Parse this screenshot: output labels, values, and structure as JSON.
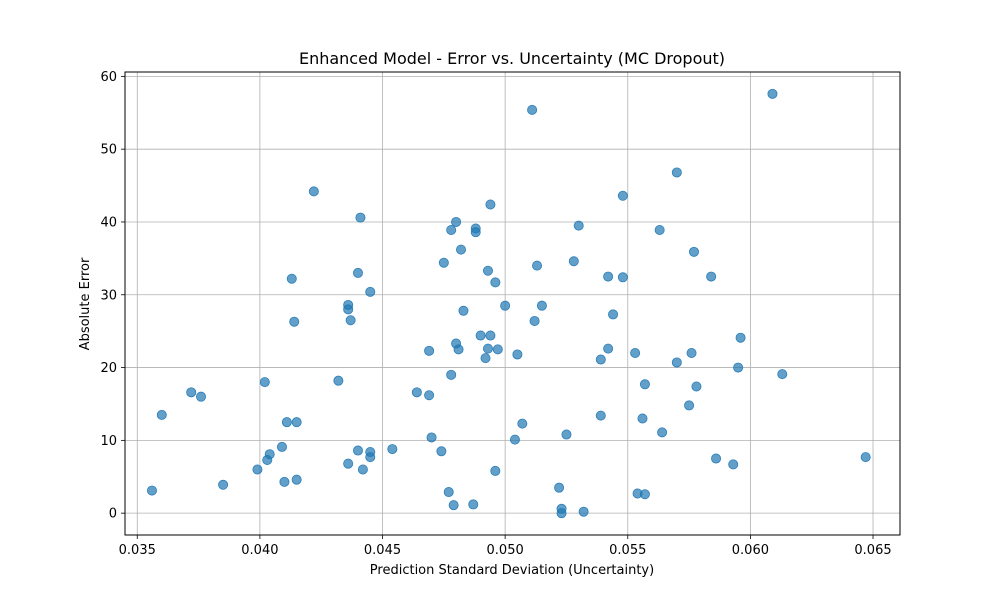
{
  "chart_data": {
    "type": "scatter",
    "title": "Enhanced Model - Error vs. Uncertainty (MC Dropout)",
    "xlabel": "Prediction Standard Deviation (Uncertainty)",
    "ylabel": "Absolute Error",
    "xlim": [
      0.0345,
      0.0661
    ],
    "ylim": [
      -3.0,
      60.6
    ],
    "xticks": [
      0.035,
      0.04,
      0.045,
      0.05,
      0.055,
      0.06,
      0.065
    ],
    "xtick_labels": [
      "0.035",
      "0.040",
      "0.045",
      "0.050",
      "0.055",
      "0.060",
      "0.065"
    ],
    "yticks": [
      0,
      10,
      20,
      30,
      40,
      50,
      60
    ],
    "ytick_labels": [
      "0",
      "10",
      "20",
      "30",
      "40",
      "50",
      "60"
    ],
    "grid": true,
    "marker_color": "#1f77b4",
    "marker_alpha": 0.7,
    "points": [
      {
        "x": 0.0356,
        "y": 3.1
      },
      {
        "x": 0.036,
        "y": 13.5
      },
      {
        "x": 0.0372,
        "y": 16.6
      },
      {
        "x": 0.0376,
        "y": 16.0
      },
      {
        "x": 0.0385,
        "y": 3.9
      },
      {
        "x": 0.0399,
        "y": 6.0
      },
      {
        "x": 0.0402,
        "y": 18.0
      },
      {
        "x": 0.0403,
        "y": 7.3
      },
      {
        "x": 0.0404,
        "y": 8.1
      },
      {
        "x": 0.0409,
        "y": 9.1
      },
      {
        "x": 0.041,
        "y": 4.3
      },
      {
        "x": 0.0411,
        "y": 12.5
      },
      {
        "x": 0.0413,
        "y": 32.2
      },
      {
        "x": 0.0414,
        "y": 26.3
      },
      {
        "x": 0.0415,
        "y": 12.5
      },
      {
        "x": 0.0415,
        "y": 4.6
      },
      {
        "x": 0.0422,
        "y": 44.2
      },
      {
        "x": 0.0432,
        "y": 18.2
      },
      {
        "x": 0.0436,
        "y": 28.6
      },
      {
        "x": 0.0436,
        "y": 28.0
      },
      {
        "x": 0.0436,
        "y": 6.8
      },
      {
        "x": 0.0437,
        "y": 26.5
      },
      {
        "x": 0.044,
        "y": 33.0
      },
      {
        "x": 0.044,
        "y": 8.6
      },
      {
        "x": 0.0441,
        "y": 40.6
      },
      {
        "x": 0.0442,
        "y": 6.0
      },
      {
        "x": 0.0445,
        "y": 30.4
      },
      {
        "x": 0.0445,
        "y": 8.4
      },
      {
        "x": 0.0445,
        "y": 7.7
      },
      {
        "x": 0.0454,
        "y": 8.8
      },
      {
        "x": 0.0464,
        "y": 16.6
      },
      {
        "x": 0.0469,
        "y": 16.2
      },
      {
        "x": 0.0469,
        "y": 22.3
      },
      {
        "x": 0.047,
        "y": 10.4
      },
      {
        "x": 0.0474,
        "y": 8.5
      },
      {
        "x": 0.0475,
        "y": 34.4
      },
      {
        "x": 0.0477,
        "y": 2.9
      },
      {
        "x": 0.0478,
        "y": 38.9
      },
      {
        "x": 0.0478,
        "y": 19.0
      },
      {
        "x": 0.0479,
        "y": 1.1
      },
      {
        "x": 0.048,
        "y": 40.0
      },
      {
        "x": 0.048,
        "y": 23.3
      },
      {
        "x": 0.0481,
        "y": 22.5
      },
      {
        "x": 0.0482,
        "y": 36.2
      },
      {
        "x": 0.0483,
        "y": 27.8
      },
      {
        "x": 0.0487,
        "y": 1.2
      },
      {
        "x": 0.0488,
        "y": 39.1
      },
      {
        "x": 0.0488,
        "y": 38.6
      },
      {
        "x": 0.049,
        "y": 24.4
      },
      {
        "x": 0.0492,
        "y": 21.3
      },
      {
        "x": 0.0493,
        "y": 33.3
      },
      {
        "x": 0.0493,
        "y": 22.6
      },
      {
        "x": 0.0494,
        "y": 42.4
      },
      {
        "x": 0.0494,
        "y": 24.4
      },
      {
        "x": 0.0496,
        "y": 31.7
      },
      {
        "x": 0.0496,
        "y": 5.8
      },
      {
        "x": 0.0497,
        "y": 22.5
      },
      {
        "x": 0.05,
        "y": 28.5
      },
      {
        "x": 0.0504,
        "y": 10.1
      },
      {
        "x": 0.0505,
        "y": 21.8
      },
      {
        "x": 0.0507,
        "y": 12.3
      },
      {
        "x": 0.0511,
        "y": 55.4
      },
      {
        "x": 0.0512,
        "y": 26.4
      },
      {
        "x": 0.0513,
        "y": 34.0
      },
      {
        "x": 0.0515,
        "y": 28.5
      },
      {
        "x": 0.0522,
        "y": 3.5
      },
      {
        "x": 0.0523,
        "y": 0.6
      },
      {
        "x": 0.0523,
        "y": 0.0
      },
      {
        "x": 0.0525,
        "y": 10.8
      },
      {
        "x": 0.0528,
        "y": 34.6
      },
      {
        "x": 0.053,
        "y": 39.5
      },
      {
        "x": 0.0532,
        "y": 0.2
      },
      {
        "x": 0.0539,
        "y": 21.1
      },
      {
        "x": 0.0539,
        "y": 13.4
      },
      {
        "x": 0.0542,
        "y": 22.6
      },
      {
        "x": 0.0542,
        "y": 32.5
      },
      {
        "x": 0.0544,
        "y": 27.3
      },
      {
        "x": 0.0548,
        "y": 43.6
      },
      {
        "x": 0.0548,
        "y": 32.4
      },
      {
        "x": 0.0553,
        "y": 22.0
      },
      {
        "x": 0.0554,
        "y": 2.7
      },
      {
        "x": 0.0556,
        "y": 13.0
      },
      {
        "x": 0.0557,
        "y": 17.7
      },
      {
        "x": 0.0557,
        "y": 2.6
      },
      {
        "x": 0.0563,
        "y": 38.9
      },
      {
        "x": 0.0564,
        "y": 11.1
      },
      {
        "x": 0.057,
        "y": 46.8
      },
      {
        "x": 0.057,
        "y": 20.7
      },
      {
        "x": 0.0575,
        "y": 14.8
      },
      {
        "x": 0.0576,
        "y": 22.0
      },
      {
        "x": 0.0577,
        "y": 35.9
      },
      {
        "x": 0.0578,
        "y": 17.4
      },
      {
        "x": 0.0584,
        "y": 32.5
      },
      {
        "x": 0.0586,
        "y": 7.5
      },
      {
        "x": 0.0593,
        "y": 6.7
      },
      {
        "x": 0.0595,
        "y": 20.0
      },
      {
        "x": 0.0596,
        "y": 24.1
      },
      {
        "x": 0.0609,
        "y": 57.6
      },
      {
        "x": 0.0613,
        "y": 19.1
      },
      {
        "x": 0.0647,
        "y": 7.7
      }
    ]
  }
}
